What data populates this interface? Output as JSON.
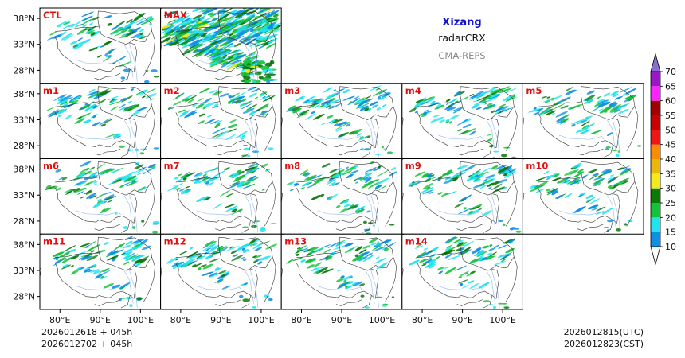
{
  "header": {
    "region": "Xizang",
    "variable": "radarCRX",
    "model": "CMA-REPS"
  },
  "lat_ticks": [
    "38°N",
    "33°N",
    "28°N"
  ],
  "lon_ticks": [
    "80°E",
    "90°E",
    "100°E"
  ],
  "rows": [
    [
      {
        "label": "CTL"
      },
      {
        "label": "MAX"
      }
    ],
    [
      {
        "label": "m1"
      },
      {
        "label": "m2"
      },
      {
        "label": "m3"
      },
      {
        "label": "m4"
      },
      {
        "label": "m5"
      }
    ],
    [
      {
        "label": "m6"
      },
      {
        "label": "m7"
      },
      {
        "label": "m8"
      },
      {
        "label": "m9"
      },
      {
        "label": "m10"
      }
    ],
    [
      {
        "label": "m11"
      },
      {
        "label": "m12"
      },
      {
        "label": "m13"
      },
      {
        "label": "m14"
      }
    ]
  ],
  "colorbar": {
    "levels": [
      "10",
      "15",
      "20",
      "25",
      "30",
      "35",
      "40",
      "45",
      "50",
      "55",
      "60",
      "65",
      "70"
    ],
    "colors": [
      "#0f8fe6",
      "#1ee4f0",
      "#16c23a",
      "#0a7a0a",
      "#f3ec1a",
      "#e8b80c",
      "#fb8c00",
      "#f01414",
      "#c80000",
      "#a00000",
      "#ff22ff",
      "#9a16c8"
    ],
    "over_color": "#8a70c8",
    "under_color": "#ffffff"
  },
  "footer": {
    "init_utc": "2026012618  +  045h",
    "init_cst": "2026012702  +  045h",
    "valid_utc": "2026012815(UTC)",
    "valid_cst": "2026012823(CST)"
  }
}
